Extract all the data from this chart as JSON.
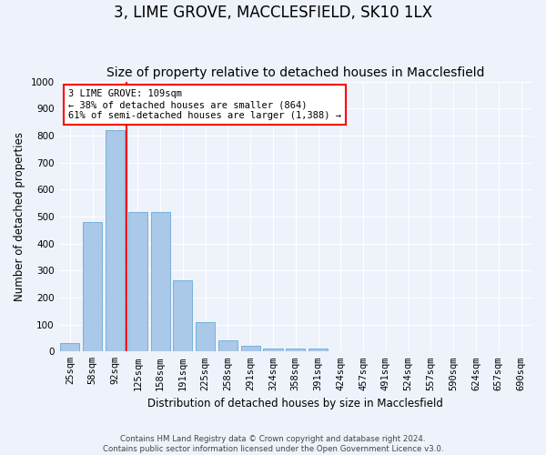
{
  "title": "3, LIME GROVE, MACCLESFIELD, SK10 1LX",
  "subtitle": "Size of property relative to detached houses in Macclesfield",
  "xlabel": "Distribution of detached houses by size in Macclesfield",
  "ylabel": "Number of detached properties",
  "footnote1": "Contains HM Land Registry data © Crown copyright and database right 2024.",
  "footnote2": "Contains public sector information licensed under the Open Government Licence v3.0.",
  "categories": [
    "25sqm",
    "58sqm",
    "92sqm",
    "125sqm",
    "158sqm",
    "191sqm",
    "225sqm",
    "258sqm",
    "291sqm",
    "324sqm",
    "358sqm",
    "391sqm",
    "424sqm",
    "457sqm",
    "491sqm",
    "524sqm",
    "557sqm",
    "590sqm",
    "624sqm",
    "657sqm",
    "690sqm"
  ],
  "values": [
    33,
    478,
    820,
    515,
    515,
    265,
    110,
    40,
    22,
    12,
    10,
    10,
    0,
    0,
    0,
    0,
    0,
    0,
    0,
    0,
    0
  ],
  "bar_color": "#aac8e8",
  "bar_edge_color": "#6aaad4",
  "vline_color": "red",
  "vline_position": 2.5,
  "annotation_text": "3 LIME GROVE: 109sqm\n← 38% of detached houses are smaller (864)\n61% of semi-detached houses are larger (1,388) →",
  "annotation_box_color": "white",
  "annotation_box_edge": "red",
  "ylim": [
    0,
    1000
  ],
  "yticks": [
    0,
    100,
    200,
    300,
    400,
    500,
    600,
    700,
    800,
    900,
    1000
  ],
  "background_color": "#eef2fb",
  "grid_color": "white",
  "title_fontsize": 12,
  "subtitle_fontsize": 10,
  "axis_label_fontsize": 8.5,
  "tick_fontsize": 7.5,
  "annotation_fontsize": 7.5
}
